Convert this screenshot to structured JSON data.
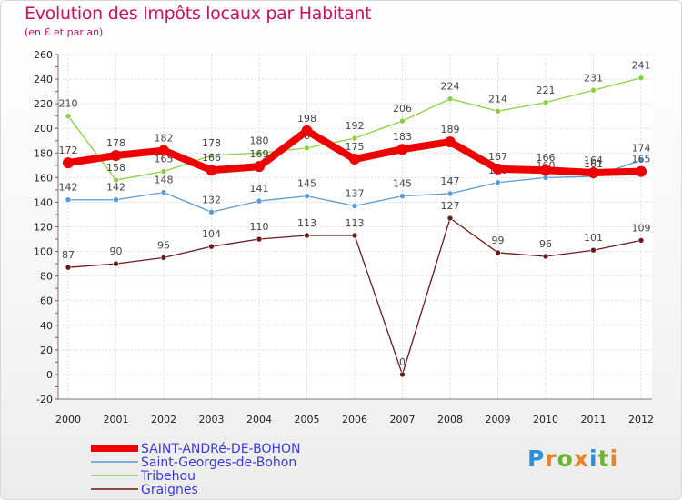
{
  "header": {
    "title": "Evolution des Impôts locaux par Habitant",
    "subtitle": "(en € et par an)"
  },
  "logo": {
    "letters": [
      "P",
      "r",
      "o",
      "x",
      "i",
      "t",
      "i"
    ],
    "colors": [
      "#2f8fd8",
      "#e8832a",
      "#6cb42f",
      "#e8832a",
      "#2f8fd8",
      "#6cb42f",
      "#e8832a"
    ]
  },
  "chart_data": {
    "type": "line",
    "title": "Evolution des Impôts locaux par Habitant",
    "ylabel": "(en € et par an)",
    "x": [
      "2000",
      "2001",
      "2002",
      "2003",
      "2004",
      "2005",
      "2006",
      "2007",
      "2008",
      "2009",
      "2010",
      "2011",
      "2012"
    ],
    "ylim": [
      -20,
      260
    ],
    "yticks": [
      -20,
      0,
      20,
      40,
      60,
      80,
      100,
      120,
      140,
      160,
      180,
      200,
      220,
      240,
      260
    ],
    "grid": true,
    "legend_position": "bottom-left",
    "series": [
      {
        "name": "Tribehou",
        "color": "#88d042",
        "values": [
          210,
          158,
          165,
          178,
          180,
          184,
          192,
          206,
          224,
          214,
          221,
          231,
          241
        ]
      },
      {
        "name": "Saint-Georges-de-Bohon",
        "color": "#5b9bd5",
        "values": [
          142,
          142,
          148,
          132,
          141,
          145,
          137,
          145,
          147,
          156,
          160,
          161,
          174
        ]
      },
      {
        "name": "Graignes",
        "color": "#6b1a1a",
        "values": [
          87,
          90,
          95,
          104,
          110,
          113,
          113,
          0,
          127,
          99,
          96,
          101,
          109
        ]
      },
      {
        "name": "SAINT-ANDRé-DE-BOHON",
        "color": "#ee0000",
        "values": [
          172,
          178,
          182,
          166,
          169,
          198,
          175,
          183,
          189,
          167,
          166,
          164,
          165
        ]
      }
    ],
    "legend": [
      "SAINT-ANDRé-DE-BOHON",
      "Saint-Georges-de-Bohon",
      "Tribehou",
      "Graignes"
    ]
  }
}
